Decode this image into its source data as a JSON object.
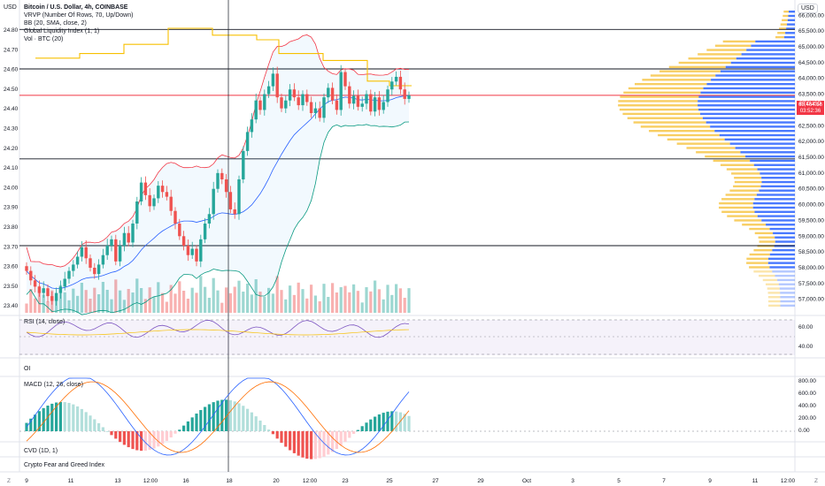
{
  "header": {
    "symbol_line": "Bitcoin / U.S. Dollar, 4h, COINBASE",
    "indicators": [
      "VRVP (Number Of Rows, 70, Up/Down)",
      "BB (20, SMA, close, 2)",
      "Global Liquidity Index (1, 1)",
      "Vol · BTC (20)"
    ]
  },
  "left_axis": {
    "unit": "USD"
  },
  "right_axis": {
    "unit": "USD"
  },
  "price_tag": {
    "symbol": "BTCUSD",
    "price": "63,464.16",
    "countdown": "03:52:36"
  },
  "panes": {
    "rsi": {
      "title": "RSI (14, close)",
      "ticks": [
        "60.00",
        "40.00"
      ]
    },
    "oi": {
      "title": "OI"
    },
    "macd": {
      "title": "MACD (12, 26, close)",
      "ticks": [
        "800.00",
        "600.00",
        "400.00",
        "200.00",
        "0.00"
      ]
    },
    "cvd": {
      "title": "CVD (1D, 1)"
    },
    "fear_greed": {
      "title": "Crypto Fear and Greed Index"
    }
  },
  "colors": {
    "up": "#26a69a",
    "down": "#ef5350",
    "gli": "#f7c000",
    "bb_upper": "#f23645",
    "bb_lower": "#089981",
    "bb_basis": "#2962ff",
    "vp_up": "#2962ff",
    "vp_down": "#f7c548"
  },
  "chart_data": {
    "type": "candlestick",
    "x_ticks": [
      "9",
      "11",
      "13",
      "12:00",
      "16",
      "18",
      "20",
      "12:00",
      "23",
      "25",
      "27",
      "29",
      "Oct",
      "3",
      "5",
      "7",
      "9",
      "11",
      "12:00"
    ],
    "right_ticks": [
      "66,000.00",
      "65,500.00",
      "65,000.00",
      "64,500.00",
      "64,000.00",
      "63,500.00",
      "63,000.00",
      "62,500.00",
      "62,000.00",
      "61,500.00",
      "61,000.00",
      "60,500.00",
      "60,000.00",
      "59,500.00",
      "59,000.00",
      "58,500.00",
      "58,000.00",
      "57,500.00",
      "57,000.00"
    ],
    "left_ticks": [
      "24.80",
      "24.70",
      "24.60",
      "24.50",
      "24.40",
      "24.30",
      "24.20",
      "24.10",
      "24.00",
      "23.90",
      "23.80",
      "23.70",
      "23.60",
      "23.50",
      "23.40"
    ],
    "x_bottom_labels": [
      "Z",
      "Z"
    ],
    "y_range": [
      56600,
      66400
    ],
    "close_series": [
      57900,
      57600,
      57400,
      57200,
      57350,
      57100,
      56950,
      57200,
      57400,
      57650,
      57900,
      58100,
      58350,
      58650,
      58300,
      58000,
      57800,
      58100,
      58400,
      58700,
      58900,
      58200,
      58700,
      59100,
      58800,
      59400,
      60100,
      60700,
      60300,
      59950,
      60200,
      60600,
      60400,
      60250,
      59800,
      59400,
      59000,
      58700,
      58400,
      58600,
      58200,
      58900,
      59400,
      59700,
      60500,
      61000,
      60800,
      60400,
      59850,
      59700,
      60800,
      61700,
      62300,
      62700,
      63300,
      63000,
      63500,
      63750,
      64150,
      63400,
      63050,
      63300,
      63650,
      63400,
      63150,
      63500,
      63250,
      62900,
      63050,
      62750,
      63400,
      63700,
      63300,
      63000,
      64200,
      63750,
      63200,
      63450,
      63100,
      63200,
      63500,
      62950,
      63400,
      63000,
      63250,
      63650,
      63900,
      64050,
      63650,
      63350,
      63464
    ]
  }
}
